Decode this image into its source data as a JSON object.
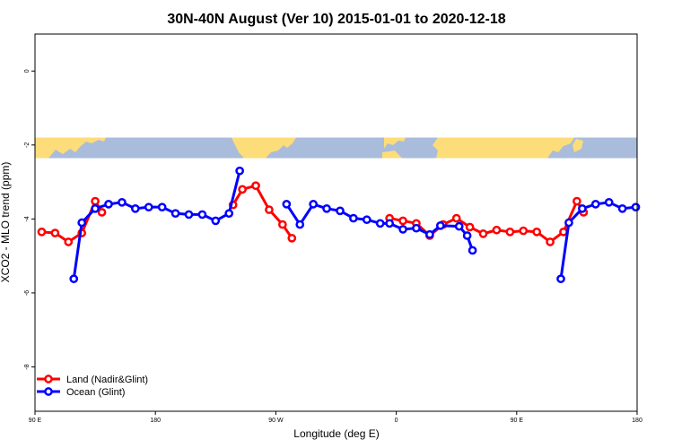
{
  "chart_data": {
    "type": "line",
    "title": "30N-40N August (Ver 10)   2015-01-01 to 2020-12-18",
    "xlabel": "Longitude (deg E)",
    "ylabel": "XCO2 - MLO trend (ppm)",
    "xlim": [
      90,
      540
    ],
    "ylim": [
      -9.2,
      1
    ],
    "x_ticks": [
      {
        "value": 90,
        "label": "90 E"
      },
      {
        "value": 180,
        "label": "180"
      },
      {
        "value": 270,
        "label": "90 W"
      },
      {
        "value": 360,
        "label": "0"
      },
      {
        "value": 450,
        "label": "90 E"
      },
      {
        "value": 540,
        "label": "180"
      }
    ],
    "y_ticks": [
      {
        "value": 0,
        "label": "0"
      },
      {
        "value": -2,
        "label": "-2"
      },
      {
        "value": -4,
        "label": "-4"
      },
      {
        "value": -6,
        "label": "-6"
      },
      {
        "value": -8,
        "label": "-8"
      }
    ],
    "map_band": {
      "y_top": -1.82,
      "y_bottom": -2.38,
      "ocean_color": "#a9bcdb",
      "land_color": "#fddc7a"
    },
    "legend": {
      "position": "bottom-left"
    },
    "series": [
      {
        "name": "Land (Nadir&Glint)",
        "color": "#ff0000",
        "segments": [
          [
            [
              95,
              -4.35
            ],
            [
              105,
              -4.38
            ],
            [
              115,
              -4.62
            ],
            [
              125,
              -4.38
            ],
            [
              135,
              -3.52
            ],
            [
              140,
              -3.82
            ]
          ],
          [
            [
              238,
              -3.62
            ],
            [
              245,
              -3.2
            ],
            [
              255,
              -3.1
            ],
            [
              265,
              -3.75
            ],
            [
              275,
              -4.15
            ],
            [
              282,
              -4.52
            ]
          ],
          [
            [
              355,
              -3.98
            ],
            [
              365,
              -4.05
            ],
            [
              375,
              -4.12
            ],
            [
              385,
              -4.45
            ],
            [
              395,
              -4.15
            ],
            [
              405,
              -3.98
            ],
            [
              415,
              -4.22
            ],
            [
              425,
              -4.4
            ],
            [
              435,
              -4.3
            ],
            [
              445,
              -4.35
            ],
            [
              455,
              -4.32
            ],
            [
              465,
              -4.35
            ],
            [
              475,
              -4.62
            ],
            [
              485,
              -4.35
            ],
            [
              495,
              -3.52
            ],
            [
              500,
              -3.82
            ]
          ]
        ]
      },
      {
        "name": "Ocean (Glint)",
        "color": "#0000ff",
        "segments": [
          [
            [
              119,
              -5.62
            ],
            [
              125,
              -4.1
            ],
            [
              135,
              -3.72
            ],
            [
              145,
              -3.6
            ],
            [
              155,
              -3.55
            ],
            [
              165,
              -3.72
            ],
            [
              175,
              -3.68
            ],
            [
              185,
              -3.68
            ],
            [
              195,
              -3.85
            ],
            [
              205,
              -3.88
            ],
            [
              215,
              -3.88
            ],
            [
              225,
              -4.05
            ],
            [
              235,
              -3.85
            ],
            [
              243,
              -2.7
            ]
          ],
          [
            [
              278,
              -3.6
            ],
            [
              288,
              -4.15
            ],
            [
              298,
              -3.6
            ],
            [
              308,
              -3.72
            ],
            [
              318,
              -3.78
            ],
            [
              328,
              -3.98
            ],
            [
              338,
              -4.02
            ],
            [
              348,
              -4.12
            ],
            [
              355,
              -4.12
            ],
            [
              365,
              -4.28
            ],
            [
              375,
              -4.25
            ],
            [
              385,
              -4.42
            ],
            [
              393,
              -4.18
            ],
            [
              407,
              -4.2
            ],
            [
              413,
              -4.45
            ],
            [
              417,
              -4.85
            ]
          ],
          [
            [
              483,
              -5.62
            ],
            [
              489,
              -4.1
            ],
            [
              499,
              -3.72
            ],
            [
              509,
              -3.6
            ],
            [
              519,
              -3.55
            ],
            [
              529,
              -3.72
            ],
            [
              539,
              -3.68
            ]
          ]
        ]
      }
    ]
  }
}
